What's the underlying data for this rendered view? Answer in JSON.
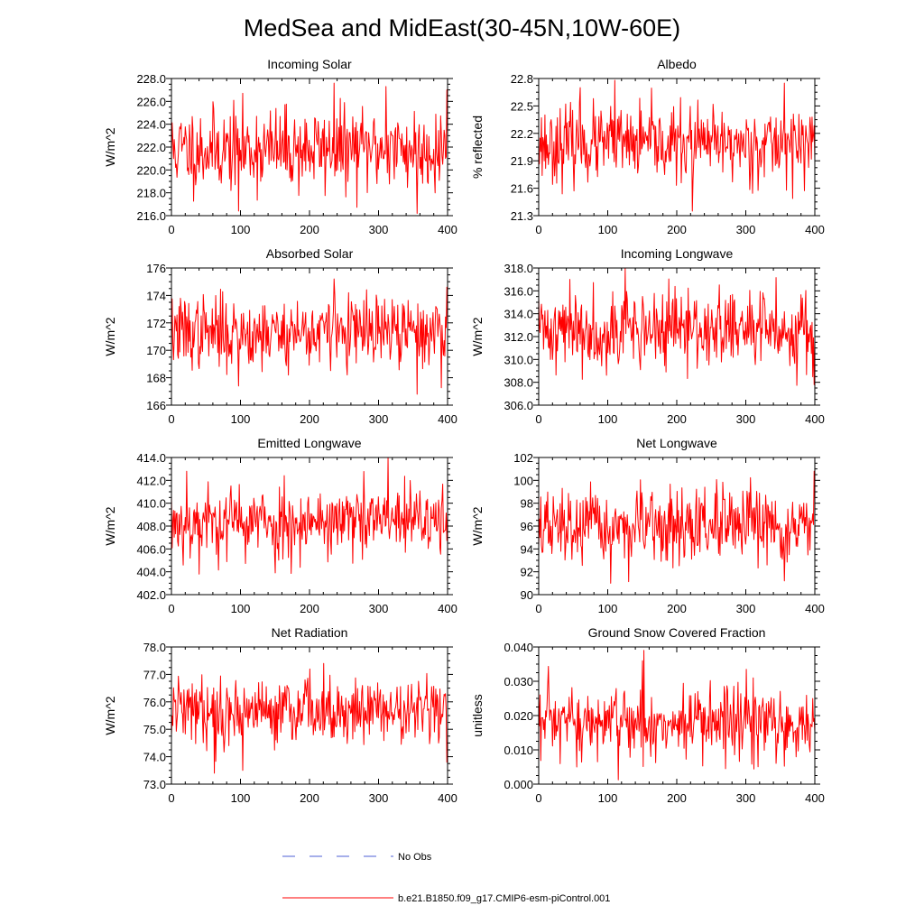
{
  "title": "MedSea and MidEast(30-45N,10W-60E)",
  "colors": {
    "series": "#ff0000",
    "obs": "#4d5fd6",
    "axis": "#000000"
  },
  "legend": {
    "obs_label": "No Obs",
    "model_label": "b.e21.B1850.f09_g17.CMIP6-esm-piControl.001"
  },
  "chart_data": [
    {
      "type": "line",
      "title": "Incoming Solar",
      "ylabel": "W/m^2",
      "xlim": [
        0,
        400
      ],
      "xticks": [
        "0",
        "100",
        "200",
        "300",
        "400"
      ],
      "ylim": [
        216,
        228
      ],
      "yticks": [
        "216.0",
        "218.0",
        "220.0",
        "222.0",
        "224.0",
        "226.0",
        "228.0"
      ],
      "mean": 221.8,
      "sd": 1.8,
      "n": 400,
      "seed": 11,
      "extremes": [
        [
          235,
          227.6
        ],
        [
          310,
          227.3
        ],
        [
          398,
          227.0
        ],
        [
          355,
          216.2
        ],
        [
          97,
          216.4
        ]
      ]
    },
    {
      "type": "line",
      "title": "Albedo",
      "ylabel": "% reflected",
      "xlim": [
        0,
        400
      ],
      "xticks": [
        "0",
        "100",
        "200",
        "300",
        "400"
      ],
      "ylim": [
        21.3,
        22.8
      ],
      "yticks": [
        "21.3",
        "21.6",
        "21.9",
        "22.2",
        "22.5",
        "22.8"
      ],
      "mean": 22.08,
      "sd": 0.2,
      "n": 400,
      "seed": 23,
      "extremes": [
        [
          110,
          22.78
        ],
        [
          355,
          22.75
        ],
        [
          222,
          21.35
        ],
        [
          60,
          22.7
        ]
      ]
    },
    {
      "type": "line",
      "title": "Absorbed Solar",
      "ylabel": "W/m^2",
      "xlim": [
        0,
        400
      ],
      "xticks": [
        "0",
        "100",
        "200",
        "300",
        "400"
      ],
      "ylim": [
        166,
        176
      ],
      "yticks": [
        "166",
        "168",
        "170",
        "172",
        "174",
        "176"
      ],
      "mean": 171.3,
      "sd": 1.3,
      "n": 400,
      "seed": 37,
      "extremes": [
        [
          235,
          175.2
        ],
        [
          398,
          174.6
        ],
        [
          355,
          166.8
        ],
        [
          97,
          167.4
        ]
      ]
    },
    {
      "type": "line",
      "title": "Incoming Longwave",
      "ylabel": "W/m^2",
      "xlim": [
        0,
        400
      ],
      "xticks": [
        "0",
        "100",
        "200",
        "300",
        "400"
      ],
      "ylim": [
        306,
        318
      ],
      "yticks": [
        "306.0",
        "308.0",
        "310.0",
        "312.0",
        "314.0",
        "316.0",
        "318.0"
      ],
      "mean": 312.6,
      "sd": 1.7,
      "n": 400,
      "seed": 41,
      "extremes": [
        [
          125,
          318.0
        ],
        [
          398,
          307.8
        ],
        [
          45,
          317.0
        ]
      ]
    },
    {
      "type": "line",
      "title": "Emitted Longwave",
      "ylabel": "W/m^2",
      "xlim": [
        0,
        400
      ],
      "xticks": [
        "0",
        "100",
        "200",
        "300",
        "400"
      ],
      "ylim": [
        402,
        414
      ],
      "yticks": [
        "402.0",
        "404.0",
        "406.0",
        "408.0",
        "410.0",
        "412.0",
        "414.0"
      ],
      "mean": 408.4,
      "sd": 1.6,
      "n": 400,
      "seed": 53,
      "extremes": [
        [
          313,
          414.0
        ],
        [
          40,
          403.8
        ],
        [
          150,
          403.9
        ],
        [
          22,
          412.8
        ]
      ]
    },
    {
      "type": "line",
      "title": "Net Longwave",
      "ylabel": "W/m^2",
      "xlim": [
        0,
        400
      ],
      "xticks": [
        "0",
        "100",
        "200",
        "300",
        "400"
      ],
      "ylim": [
        90,
        102
      ],
      "yticks": [
        "90",
        "92",
        "94",
        "96",
        "98",
        "100",
        "102"
      ],
      "mean": 95.8,
      "sd": 1.6,
      "n": 400,
      "seed": 67,
      "extremes": [
        [
          398,
          100.8
        ],
        [
          104,
          91.0
        ],
        [
          355,
          91.2
        ],
        [
          240,
          99.4
        ]
      ]
    },
    {
      "type": "line",
      "title": "Net Radiation",
      "ylabel": "W/m^2",
      "xlim": [
        0,
        400
      ],
      "xticks": [
        "0",
        "100",
        "200",
        "300",
        "400"
      ],
      "ylim": [
        73,
        78
      ],
      "yticks": [
        "73.0",
        "74.0",
        "75.0",
        "76.0",
        "77.0",
        "78.0"
      ],
      "mean": 75.7,
      "sd": 0.6,
      "n": 400,
      "seed": 79,
      "extremes": [
        [
          220,
          77.4
        ],
        [
          200,
          77.2
        ],
        [
          62,
          73.4
        ],
        [
          103,
          73.5
        ],
        [
          398,
          73.8
        ]
      ]
    },
    {
      "type": "line",
      "title": "Ground Snow Covered Fraction",
      "ylabel": "unitless",
      "xlim": [
        0,
        400
      ],
      "xticks": [
        "0",
        "100",
        "200",
        "300",
        "400"
      ],
      "ylim": [
        0,
        0.04
      ],
      "yticks": [
        "0.000",
        "0.010",
        "0.020",
        "0.030",
        "0.040"
      ],
      "mean": 0.0175,
      "sd": 0.0055,
      "n": 400,
      "seed": 97,
      "extremes": [
        [
          152,
          0.039
        ],
        [
          300,
          0.0335
        ],
        [
          150,
          0.036
        ],
        [
          55,
          0.005
        ],
        [
          270,
          0.0045
        ]
      ]
    }
  ]
}
